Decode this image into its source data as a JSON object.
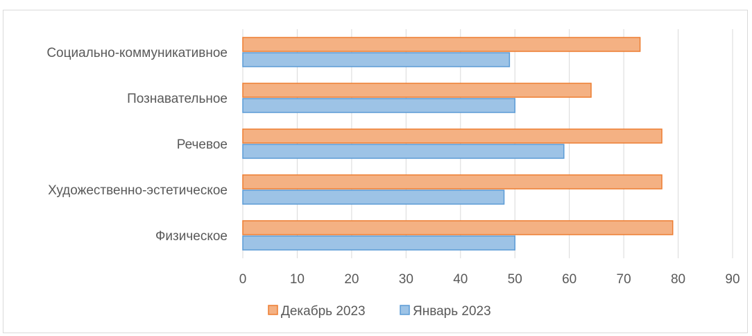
{
  "chart_data": {
    "type": "bar",
    "orientation": "horizontal",
    "categories": [
      "Социально-коммуникативное",
      "Познавательное",
      "Речевое",
      "Художественно-эстетическое",
      "Физическое"
    ],
    "series": [
      {
        "name": "Декабрь 2023",
        "values": [
          73,
          64,
          77,
          77,
          79
        ],
        "color": "#f4b183",
        "stroke": "#ed7d31"
      },
      {
        "name": "Январь 2023",
        "values": [
          49,
          50,
          59,
          48,
          50
        ],
        "color": "#9dc3e6",
        "stroke": "#5b9bd5"
      }
    ],
    "xlim": [
      0,
      90
    ],
    "xticks": [
      0,
      10,
      20,
      30,
      40,
      50,
      60,
      70,
      80,
      90
    ],
    "grid": true,
    "legend_position": "bottom"
  }
}
